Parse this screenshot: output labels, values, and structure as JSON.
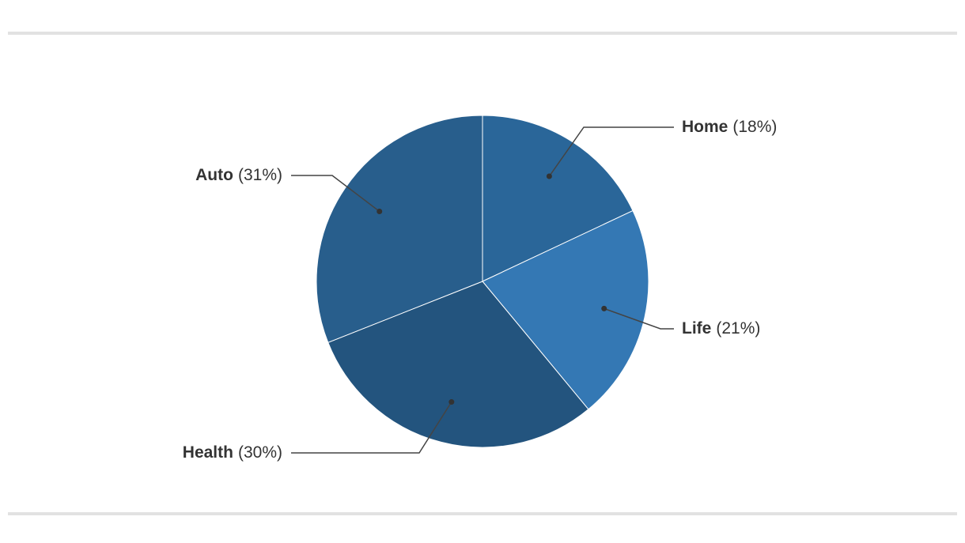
{
  "chart_data": {
    "type": "pie",
    "categories": [
      "Home",
      "Life",
      "Health",
      "Auto"
    ],
    "values": [
      18,
      21,
      30,
      31
    ],
    "value_labels": [
      "(18%)",
      "(21%)",
      "(30%)",
      "(31%)"
    ],
    "colors": [
      "#2a6699",
      "#3478b4",
      "#23547e",
      "#285e8c"
    ]
  }
}
